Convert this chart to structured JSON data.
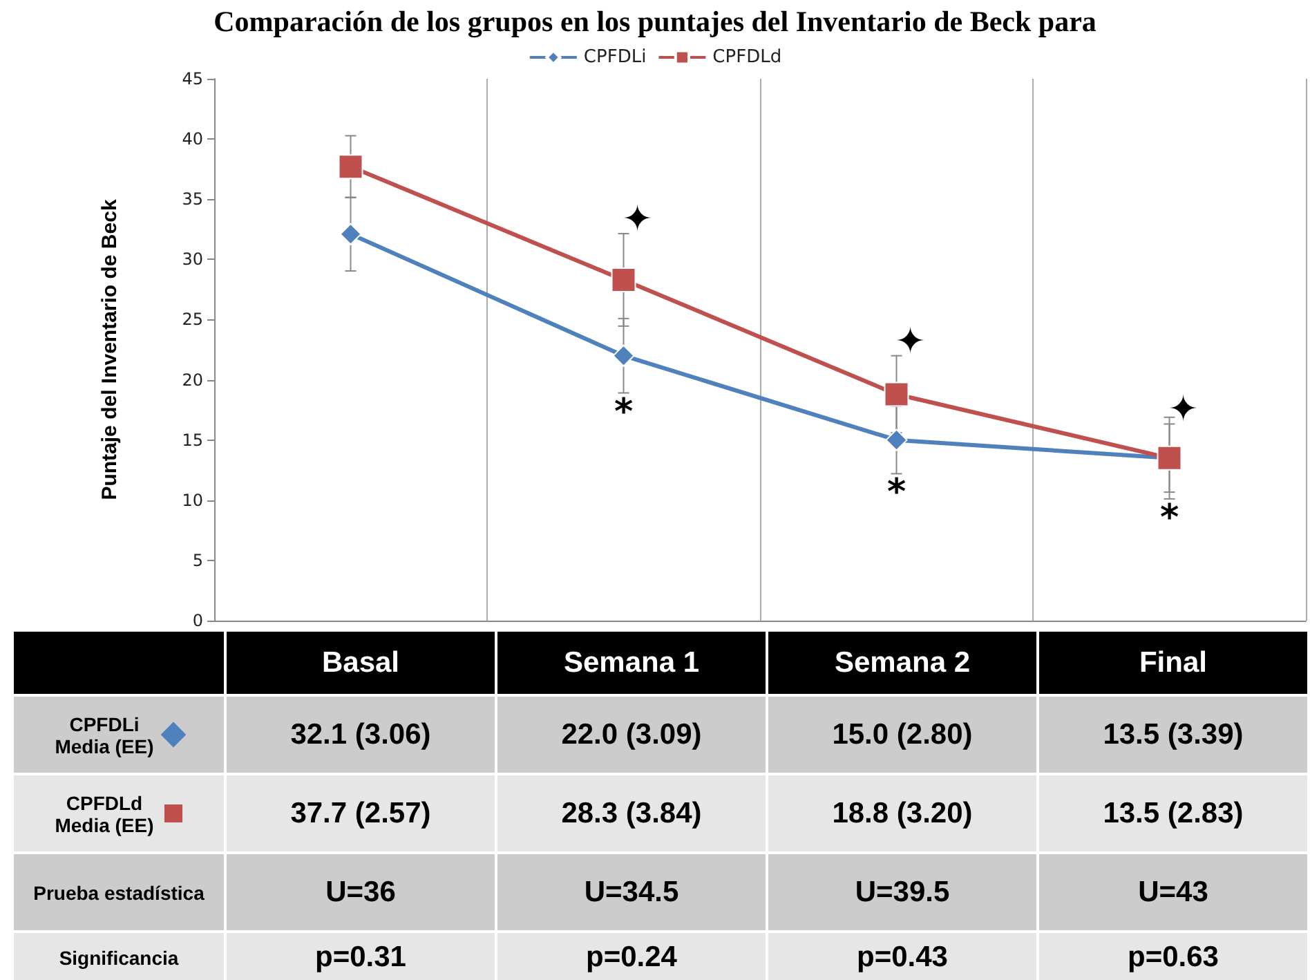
{
  "chart_data": {
    "type": "line",
    "title": "Comparación de los grupos en los puntajes del Inventario de Beck para",
    "ylabel": "Puntaje del Inventario de Beck",
    "categories": [
      "Basal",
      "Semana 1",
      "Semana 2",
      "Final"
    ],
    "series": [
      {
        "name": "CPFDLi",
        "color": "#4f81bd",
        "marker": "diamond",
        "values": [
          32.1,
          22.0,
          15.0,
          13.5
        ],
        "errors": [
          3.06,
          3.09,
          2.8,
          3.39
        ],
        "value_labels": [
          "32.1 (3.06)",
          "22.0 (3.09)",
          "15.0 (2.80)",
          "13.5 (3.39)"
        ]
      },
      {
        "name": "CPFDLd",
        "color": "#c0504d",
        "marker": "square",
        "values": [
          37.7,
          28.3,
          18.8,
          13.5
        ],
        "errors": [
          2.57,
          3.84,
          3.2,
          2.83
        ],
        "value_labels": [
          "37.7 (2.57)",
          "28.3 (3.84)",
          "18.8 (3.20)",
          "13.5 (2.83)"
        ]
      }
    ],
    "ylim": [
      0,
      45
    ],
    "yticks": [
      0,
      5,
      10,
      15,
      20,
      25,
      30,
      35,
      40,
      45
    ],
    "grid": "x",
    "legend": "top",
    "annotations": [
      "Media (EE)",
      "Prueba estadística",
      "Significancia",
      "U=36",
      "U=34.5",
      "U=39.5",
      "U=43",
      "p=0.31",
      "p=0.24",
      "p=0.43",
      "p=0.63",
      "*",
      "*",
      "*",
      "✦",
      "✦",
      "✦"
    ]
  }
}
